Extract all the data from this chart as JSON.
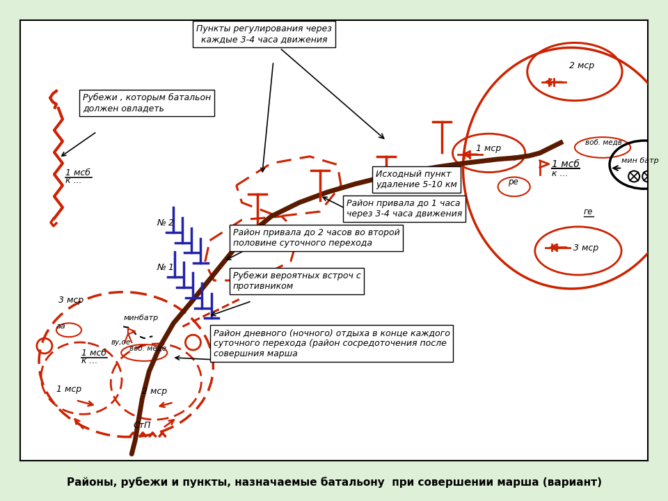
{
  "bg_color": "#dff0d8",
  "map_bg": "#ffffff",
  "red": "#cc2200",
  "brown": "#5a1a00",
  "blue": "#2222aa",
  "black": "#000000",
  "title": "Районы, рубежи и пункты, назначаемые батальону  при совершении марша (вариант)",
  "ann_punct": "Пункты регулирования через\nкаждые 3-4 часа движения",
  "ann_rubezhi": "Рубежи , которым батальон\nдолжен овладеть",
  "ann_ishodny": "Исходный пункт\nудаление 5-10 км",
  "ann_rayon1": "Район привала до 1 часа\nчерез 3-4 часа движения",
  "ann_rayon2": "Район привала до 2 часов во второй\nполовине суточного перехода",
  "ann_rubvstr": "Рубежи вероятных встроч с\nпротивником",
  "ann_rayon_dnevn": "Район дневного (ночного) отдыха в конце каждого\nсуточного перехода (район сосредоточения после\nсовершния марша"
}
